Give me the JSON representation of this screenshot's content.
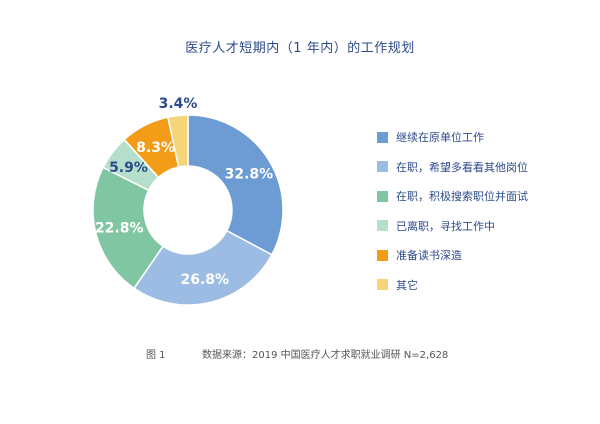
{
  "chart_data": {
    "type": "pie",
    "title": "医疗人才短期内（1 年内）的工作规划",
    "donut": true,
    "categories": [
      "继续在原单位工作",
      "在职，希望多看看其他岗位",
      "在职，积极搜索职位并面试",
      "已离职，寻找工作中",
      "准备读书深造",
      "其它"
    ],
    "values": [
      32.8,
      26.8,
      22.8,
      5.9,
      8.3,
      3.4
    ],
    "labels": [
      "32.8%",
      "26.8%",
      "22.8%",
      "5.9%",
      "8.3%",
      "3.4%"
    ],
    "colors": [
      "#6d9bd4",
      "#9cbce3",
      "#80c6a3",
      "#b6dfcb",
      "#f29c17",
      "#f6d47a"
    ],
    "label_colors": [
      "#ffffff",
      "#ffffff",
      "#ffffff",
      "#2d4a8a",
      "#ffffff",
      "#2d4a8a"
    ],
    "legend_position": "right"
  },
  "caption": {
    "figure": "图 1",
    "source": "数据来源：2019 中国医疗人才求职就业调研 N=2,628"
  }
}
